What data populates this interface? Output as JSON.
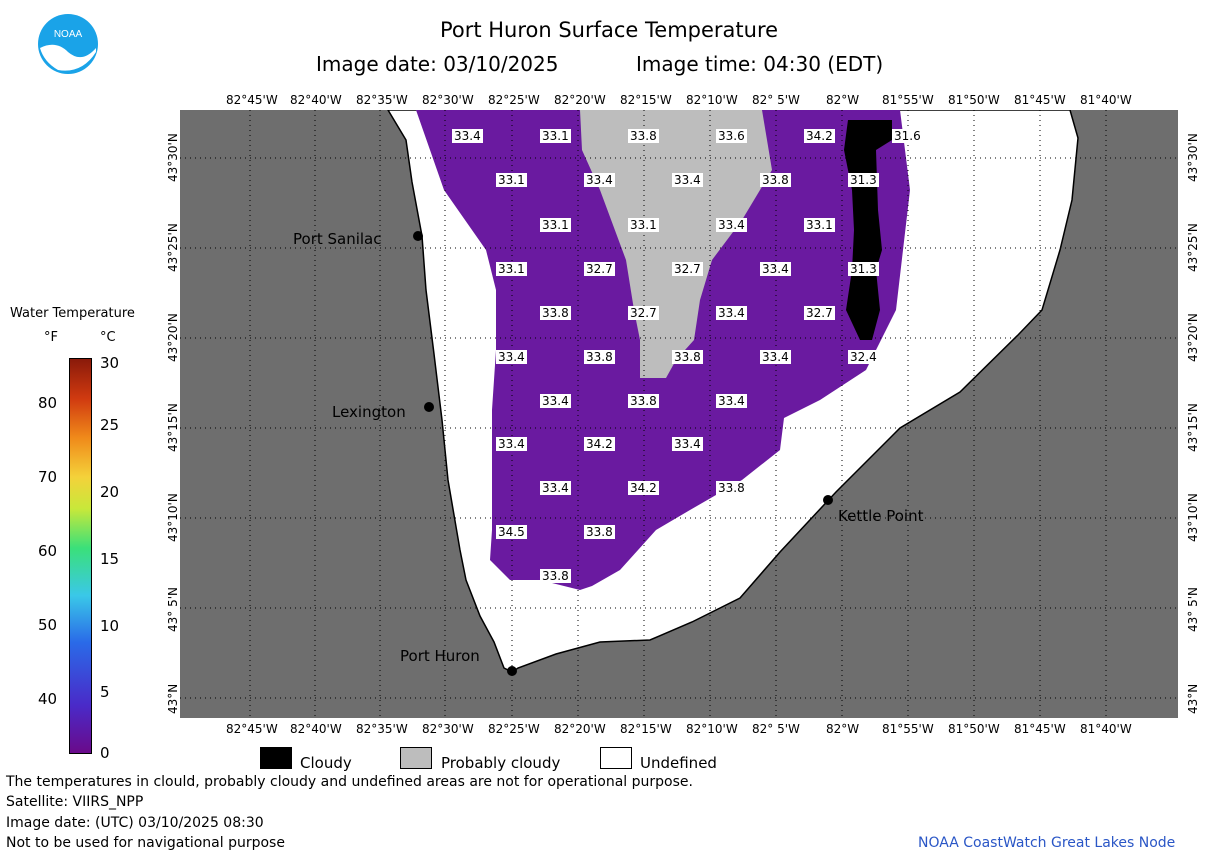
{
  "header": {
    "title": "Port Huron Surface Temperature",
    "image_date_label": "Image date: 03/10/2025",
    "image_time_label": "Image time: 04:30 (EDT)"
  },
  "logo": {
    "text": "NOAA"
  },
  "axes": {
    "lon_ticks": [
      "82°45'W",
      "82°40'W",
      "82°35'W",
      "82°30'W",
      "82°25'W",
      "82°20'W",
      "82°15'W",
      "82°10'W",
      "82° 5'W",
      "82°W",
      "81°55'W",
      "81°50'W",
      "81°45'W",
      "81°40'W"
    ],
    "lat_ticks": [
      "43°30'N",
      "43°25'N",
      "43°20'N",
      "43°15'N",
      "43°10'N",
      "43° 5'N",
      "43°N"
    ]
  },
  "colorbar": {
    "title": "Water Temperature",
    "unit_f": "°F",
    "unit_c": "°C",
    "f_ticks": [
      "80",
      "70",
      "60",
      "50",
      "40"
    ],
    "c_ticks": [
      "30",
      "25",
      "20",
      "15",
      "10",
      "5",
      "0"
    ]
  },
  "cities": [
    "Port Sanilac",
    "Lexington",
    "Kettle Point",
    "Port Huron"
  ],
  "temperatures": [
    "33.4",
    "33.1",
    "33.8",
    "33.6",
    "34.2",
    "31.6",
    "33.1",
    "33.4",
    "33.4",
    "33.8",
    "31.3",
    "33.1",
    "33.1",
    "33.4",
    "33.1",
    "33.1",
    "32.7",
    "32.7",
    "33.4",
    "31.3",
    "33.8",
    "32.7",
    "33.4",
    "32.7",
    "33.4",
    "33.8",
    "33.8",
    "33.4",
    "32.4",
    "33.4",
    "33.8",
    "33.4",
    "33.4",
    "34.2",
    "33.4",
    "33.4",
    "34.2",
    "33.8",
    "34.5",
    "33.8",
    "33.8"
  ],
  "legend": {
    "cloudy": "Cloudy",
    "probably_cloudy": "Probably cloudy",
    "undefined": "Undefined"
  },
  "colors": {
    "land": "#6e6e6e",
    "water_temp": "#6a1aa0",
    "probably_cloudy": "#bdbdbd",
    "cloudy": "#000000",
    "undefined": "#ffffff",
    "credit": "#2a56c6"
  },
  "footer": {
    "disclaimer": "The temperatures in clould, probably cloudy and undefined areas are not for operational purpose.",
    "satellite": "Satellite: VIIRS_NPP",
    "image_date_utc": "Image date: (UTC) 03/10/2025  08:30",
    "nav_warning": "Not to be used for navigational purpose",
    "credit": "NOAA CoastWatch Great Lakes Node"
  }
}
